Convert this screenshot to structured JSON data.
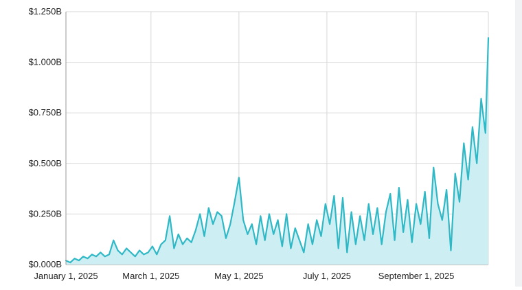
{
  "chart_data": {
    "type": "area",
    "title": "",
    "xlabel": "",
    "ylabel": "",
    "x_axis": {
      "type": "date",
      "range": [
        "2025-01-01",
        "2025-10-21"
      ],
      "ticks": [
        {
          "date": "2025-01-01",
          "label": "January 1, 2025"
        },
        {
          "date": "2025-03-01",
          "label": "March 1, 2025"
        },
        {
          "date": "2025-05-01",
          "label": "May 1, 2025"
        },
        {
          "date": "2025-07-01",
          "label": "July 1, 2025"
        },
        {
          "date": "2025-09-01",
          "label": "September 1, 2025"
        }
      ]
    },
    "y_axis": {
      "range": [
        0,
        1.25
      ],
      "unit": "B",
      "ticks": [
        {
          "value": 0,
          "label": "$0.000B"
        },
        {
          "value": 0.25,
          "label": "$0.250B"
        },
        {
          "value": 0.5,
          "label": "$0.500B"
        },
        {
          "value": 0.75,
          "label": "$0.750B"
        },
        {
          "value": 1.0,
          "label": "$1.000B"
        },
        {
          "value": 1.25,
          "label": "$1.250B"
        }
      ]
    },
    "grid": true,
    "legend": "none",
    "colors": {
      "line": "#2fb8c6",
      "fill": "#cdeef2",
      "grid": "#d7d7d7",
      "axis": "#9a9a9a"
    },
    "series": [
      {
        "x": [
          "2025-01-01",
          "2025-01-04",
          "2025-01-07",
          "2025-01-10",
          "2025-01-13",
          "2025-01-16",
          "2025-01-19",
          "2025-01-22",
          "2025-01-25",
          "2025-01-28",
          "2025-01-31",
          "2025-02-03",
          "2025-02-06",
          "2025-02-09",
          "2025-02-12",
          "2025-02-15",
          "2025-02-18",
          "2025-02-21",
          "2025-02-24",
          "2025-02-27",
          "2025-03-02",
          "2025-03-05",
          "2025-03-08",
          "2025-03-11",
          "2025-03-14",
          "2025-03-17",
          "2025-03-20",
          "2025-03-23",
          "2025-03-26",
          "2025-03-29",
          "2025-04-01",
          "2025-04-04",
          "2025-04-07",
          "2025-04-10",
          "2025-04-13",
          "2025-04-16",
          "2025-04-19",
          "2025-04-22",
          "2025-04-25",
          "2025-04-28",
          "2025-05-01",
          "2025-05-04",
          "2025-05-07",
          "2025-05-10",
          "2025-05-13",
          "2025-05-16",
          "2025-05-19",
          "2025-05-22",
          "2025-05-25",
          "2025-05-28",
          "2025-05-31",
          "2025-06-03",
          "2025-06-06",
          "2025-06-09",
          "2025-06-12",
          "2025-06-15",
          "2025-06-18",
          "2025-06-21",
          "2025-06-24",
          "2025-06-27",
          "2025-06-30",
          "2025-07-03",
          "2025-07-06",
          "2025-07-09",
          "2025-07-12",
          "2025-07-15",
          "2025-07-18",
          "2025-07-21",
          "2025-07-24",
          "2025-07-27",
          "2025-07-30",
          "2025-08-02",
          "2025-08-05",
          "2025-08-08",
          "2025-08-11",
          "2025-08-14",
          "2025-08-17",
          "2025-08-20",
          "2025-08-23",
          "2025-08-26",
          "2025-08-29",
          "2025-09-01",
          "2025-09-04",
          "2025-09-07",
          "2025-09-10",
          "2025-09-13",
          "2025-09-16",
          "2025-09-19",
          "2025-09-22",
          "2025-09-25",
          "2025-09-28",
          "2025-10-01",
          "2025-10-04",
          "2025-10-07",
          "2025-10-10",
          "2025-10-13",
          "2025-10-16",
          "2025-10-19",
          "2025-10-21"
        ],
        "y": [
          0.02,
          0.01,
          0.03,
          0.02,
          0.04,
          0.03,
          0.05,
          0.04,
          0.06,
          0.04,
          0.05,
          0.12,
          0.07,
          0.05,
          0.08,
          0.06,
          0.04,
          0.07,
          0.05,
          0.06,
          0.09,
          0.05,
          0.1,
          0.12,
          0.24,
          0.08,
          0.15,
          0.1,
          0.13,
          0.11,
          0.17,
          0.25,
          0.14,
          0.28,
          0.2,
          0.26,
          0.24,
          0.13,
          0.2,
          0.31,
          0.43,
          0.22,
          0.15,
          0.2,
          0.1,
          0.24,
          0.12,
          0.25,
          0.15,
          0.22,
          0.09,
          0.25,
          0.08,
          0.18,
          0.12,
          0.06,
          0.2,
          0.1,
          0.22,
          0.14,
          0.3,
          0.2,
          0.34,
          0.08,
          0.33,
          0.06,
          0.26,
          0.1,
          0.24,
          0.12,
          0.3,
          0.15,
          0.28,
          0.1,
          0.26,
          0.35,
          0.12,
          0.38,
          0.16,
          0.32,
          0.11,
          0.3,
          0.2,
          0.36,
          0.13,
          0.48,
          0.3,
          0.22,
          0.37,
          0.07,
          0.45,
          0.31,
          0.6,
          0.42,
          0.68,
          0.5,
          0.82,
          0.65,
          1.12
        ]
      }
    ]
  }
}
